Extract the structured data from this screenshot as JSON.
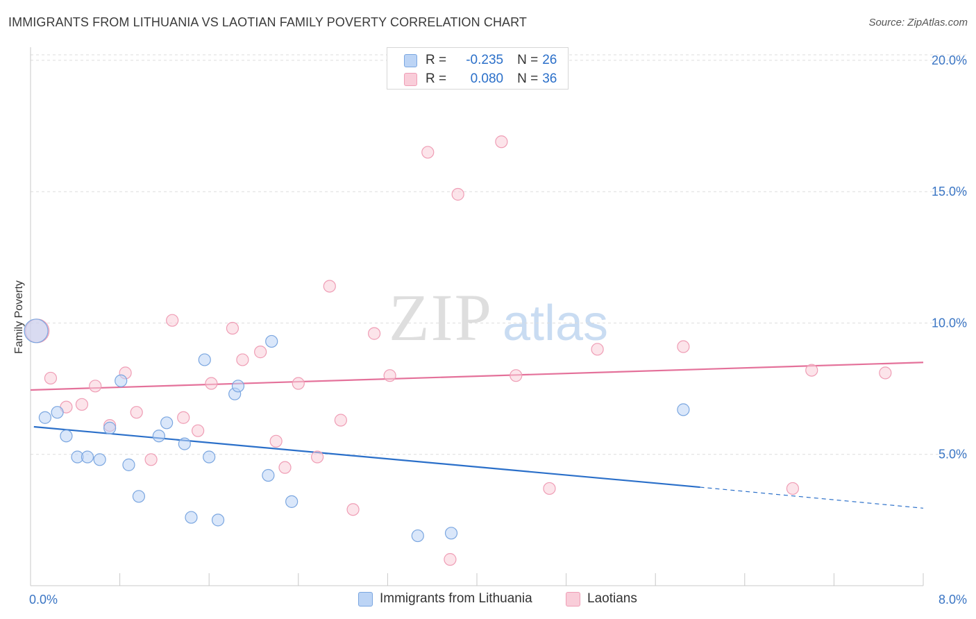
{
  "title": "IMMIGRANTS FROM LITHUANIA VS LAOTIAN FAMILY POVERTY CORRELATION CHART",
  "source": "Source: ZipAtlas.com",
  "watermark": {
    "zip": "ZIP",
    "atlas": "atlas"
  },
  "legend": {
    "r_label": "R =",
    "n_label": "N =",
    "rows": [
      {
        "r": "-0.235",
        "n": "26"
      },
      {
        "r": "0.080",
        "n": "36"
      }
    ]
  },
  "colors": {
    "blue_fill": "#bcd4f5",
    "blue_stroke": "#7aa6e0",
    "blue_line": "#2a6fc9",
    "pink_fill": "#f9cdd9",
    "pink_stroke": "#ef9db5",
    "pink_line": "#e4719a",
    "tick_label": "#3a75c4",
    "grid": "#dddddd"
  },
  "chart_data": {
    "type": "scatter",
    "title": "IMMIGRANTS FROM LITHUANIA VS LAOTIAN FAMILY POVERTY CORRELATION CHART",
    "xlabel": "",
    "ylabel": "Family Poverty",
    "xlim": [
      0,
      8
    ],
    "ylim": [
      0,
      20.5
    ],
    "x_tick_labels": [
      {
        "value": 0,
        "label": "0.0%"
      },
      {
        "value": 8,
        "label": "8.0%"
      }
    ],
    "y_ticks": [
      {
        "value": 5,
        "label": "5.0%"
      },
      {
        "value": 10,
        "label": "10.0%"
      },
      {
        "value": 15,
        "label": "15.0%"
      },
      {
        "value": 20,
        "label": "20.0%"
      }
    ],
    "x_minor_ticks": [
      0.8,
      1.6,
      2.4,
      3.2,
      4.0,
      4.8,
      5.6,
      6.4,
      7.2,
      8.0
    ],
    "grid": true,
    "series": [
      {
        "name": "Immigrants from Lithuania",
        "color": "#7aa6e0",
        "r": -0.235,
        "n": 26,
        "points": [
          {
            "x": 0.05,
            "y": 9.7,
            "big": true
          },
          {
            "x": 0.13,
            "y": 6.4
          },
          {
            "x": 0.24,
            "y": 6.6
          },
          {
            "x": 0.32,
            "y": 5.7
          },
          {
            "x": 0.42,
            "y": 4.9
          },
          {
            "x": 0.51,
            "y": 4.9
          },
          {
            "x": 0.62,
            "y": 4.8
          },
          {
            "x": 0.71,
            "y": 6.0
          },
          {
            "x": 0.81,
            "y": 7.8
          },
          {
            "x": 0.88,
            "y": 4.6
          },
          {
            "x": 0.97,
            "y": 3.4
          },
          {
            "x": 1.15,
            "y": 5.7
          },
          {
            "x": 1.22,
            "y": 6.2
          },
          {
            "x": 1.38,
            "y": 5.4
          },
          {
            "x": 1.44,
            "y": 2.6
          },
          {
            "x": 1.56,
            "y": 8.6
          },
          {
            "x": 1.6,
            "y": 4.9
          },
          {
            "x": 1.68,
            "y": 2.5
          },
          {
            "x": 1.83,
            "y": 7.3
          },
          {
            "x": 1.86,
            "y": 7.6
          },
          {
            "x": 2.13,
            "y": 4.2
          },
          {
            "x": 2.16,
            "y": 9.3
          },
          {
            "x": 2.34,
            "y": 3.2
          },
          {
            "x": 3.47,
            "y": 1.9
          },
          {
            "x": 3.77,
            "y": 2.0
          },
          {
            "x": 5.85,
            "y": 6.7
          }
        ],
        "trend": {
          "x0": 0.03,
          "y0": 6.05,
          "x1": 6.0,
          "y1": 3.75,
          "dashed_to": {
            "x": 8.0,
            "y": 2.95
          }
        }
      },
      {
        "name": "Laotians",
        "color": "#ef9db5",
        "r": 0.08,
        "n": 36,
        "points": [
          {
            "x": 0.06,
            "y": 9.7,
            "big": true
          },
          {
            "x": 0.18,
            "y": 7.9
          },
          {
            "x": 0.32,
            "y": 6.8
          },
          {
            "x": 0.46,
            "y": 6.9
          },
          {
            "x": 0.58,
            "y": 7.6
          },
          {
            "x": 0.71,
            "y": 6.1
          },
          {
            "x": 0.85,
            "y": 8.1
          },
          {
            "x": 0.95,
            "y": 6.6
          },
          {
            "x": 1.08,
            "y": 4.8
          },
          {
            "x": 1.27,
            "y": 10.1
          },
          {
            "x": 1.37,
            "y": 6.4
          },
          {
            "x": 1.5,
            "y": 5.9
          },
          {
            "x": 1.62,
            "y": 7.7
          },
          {
            "x": 1.81,
            "y": 9.8
          },
          {
            "x": 1.9,
            "y": 8.6
          },
          {
            "x": 2.06,
            "y": 8.9
          },
          {
            "x": 2.2,
            "y": 5.5
          },
          {
            "x": 2.28,
            "y": 4.5
          },
          {
            "x": 2.4,
            "y": 7.7
          },
          {
            "x": 2.57,
            "y": 4.9
          },
          {
            "x": 2.68,
            "y": 11.4
          },
          {
            "x": 2.78,
            "y": 6.3
          },
          {
            "x": 2.89,
            "y": 2.9
          },
          {
            "x": 3.08,
            "y": 9.6
          },
          {
            "x": 3.22,
            "y": 8.0
          },
          {
            "x": 3.56,
            "y": 16.5
          },
          {
            "x": 3.76,
            "y": 1.0
          },
          {
            "x": 3.83,
            "y": 14.9
          },
          {
            "x": 4.22,
            "y": 16.9
          },
          {
            "x": 4.35,
            "y": 8.0
          },
          {
            "x": 4.65,
            "y": 3.7
          },
          {
            "x": 5.08,
            "y": 9.0
          },
          {
            "x": 5.85,
            "y": 9.1
          },
          {
            "x": 6.83,
            "y": 3.7
          },
          {
            "x": 7.0,
            "y": 8.2
          },
          {
            "x": 7.66,
            "y": 8.1
          }
        ],
        "trend": {
          "x0": 0.0,
          "y0": 7.45,
          "x1": 8.0,
          "y1": 8.5
        }
      }
    ]
  }
}
